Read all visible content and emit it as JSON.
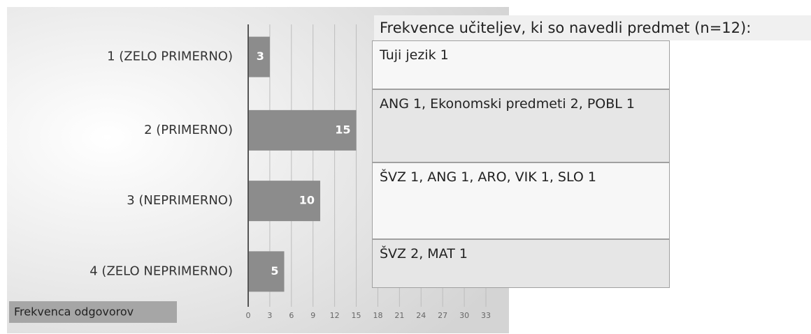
{
  "chart_data": {
    "type": "bar",
    "orientation": "horizontal",
    "categories": [
      "1 (ZELO PRIMERNO)",
      "2 (PRIMERNO)",
      "3 (NEPRIMERNO)",
      "4 (ZELO NEPRIMERNO)"
    ],
    "values": [
      3,
      15,
      10,
      5
    ],
    "color": "#8c8c8c",
    "xlim": [
      0,
      33
    ],
    "xticks": [
      0,
      3,
      6,
      9,
      12,
      15,
      18,
      21,
      24,
      27,
      30,
      33
    ],
    "grid": true,
    "x_label": "Frekvenca odgovorov"
  },
  "table": {
    "title": "Frekvence učiteljev, ki so navedli predmet (n=12):",
    "rows": [
      "Tuji jezik 1",
      "ANG 1, Ekonomski predmeti 2, POBL 1",
      "ŠVZ 1, ANG 1, ARO, VIK 1, SLO 1",
      "ŠVZ 2, MAT 1"
    ]
  }
}
